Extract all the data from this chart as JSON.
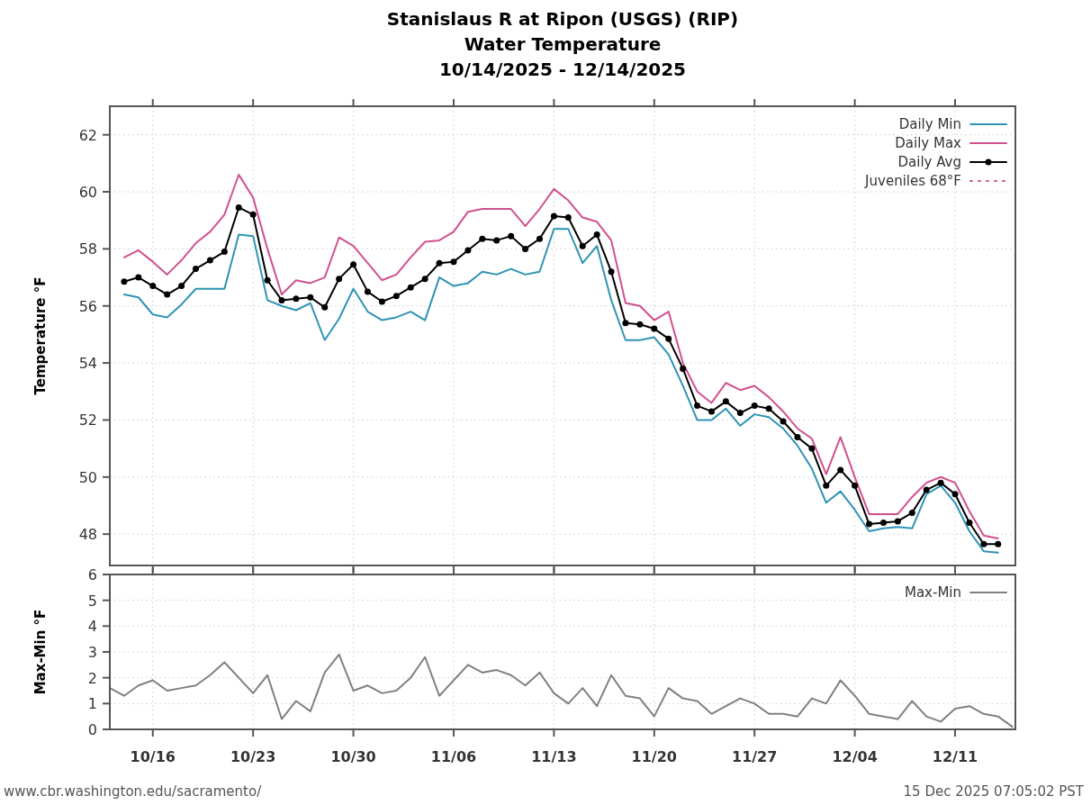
{
  "chart_data": [
    {
      "type": "line",
      "title": "Stanislaus R at Ripon (USGS) (RIP)",
      "subtitle": "Water Temperature\n10/14/2025 - 12/14/2025",
      "ylabel": "Temperature °F",
      "x": [
        "2025-10-14",
        "2025-10-15",
        "2025-10-16",
        "2025-10-17",
        "2025-10-18",
        "2025-10-19",
        "2025-10-20",
        "2025-10-21",
        "2025-10-22",
        "2025-10-23",
        "2025-10-24",
        "2025-10-25",
        "2025-10-26",
        "2025-10-27",
        "2025-10-28",
        "2025-10-29",
        "2025-10-30",
        "2025-10-31",
        "2025-11-01",
        "2025-11-02",
        "2025-11-03",
        "2025-11-04",
        "2025-11-05",
        "2025-11-06",
        "2025-11-07",
        "2025-11-08",
        "2025-11-09",
        "2025-11-10",
        "2025-11-11",
        "2025-11-12",
        "2025-11-13",
        "2025-11-14",
        "2025-11-15",
        "2025-11-16",
        "2025-11-17",
        "2025-11-18",
        "2025-11-19",
        "2025-11-20",
        "2025-11-21",
        "2025-11-22",
        "2025-11-23",
        "2025-11-24",
        "2025-11-25",
        "2025-11-26",
        "2025-11-27",
        "2025-11-28",
        "2025-11-29",
        "2025-11-30",
        "2025-12-01",
        "2025-12-02",
        "2025-12-03",
        "2025-12-04",
        "2025-12-05",
        "2025-12-06",
        "2025-12-07",
        "2025-12-08",
        "2025-12-09",
        "2025-12-10",
        "2025-12-11",
        "2025-12-12",
        "2025-12-13",
        "2025-12-14"
      ],
      "series": [
        {
          "name": "Daily Min",
          "color": "#2f93b5",
          "values": [
            56.4,
            56.3,
            55.7,
            55.6,
            56.05,
            56.6,
            56.6,
            56.6,
            58.5,
            58.45,
            56.2,
            56.0,
            55.85,
            56.1,
            54.8,
            55.55,
            56.6,
            55.8,
            55.5,
            55.6,
            55.8,
            55.5,
            57.0,
            56.7,
            56.8,
            57.2,
            57.1,
            57.3,
            57.1,
            57.2,
            58.7,
            58.7,
            57.5,
            58.1,
            56.2,
            54.8,
            54.8,
            54.9,
            54.3,
            53.2,
            52.0,
            52.0,
            52.4,
            51.8,
            52.2,
            52.1,
            51.7,
            51.1,
            50.3,
            49.1,
            49.5,
            48.85,
            48.1,
            48.2,
            48.25,
            48.2,
            49.4,
            49.7,
            49.1,
            48.1,
            47.4,
            47.35
          ]
        },
        {
          "name": "Daily Max",
          "color": "#d0508f",
          "values": [
            57.7,
            57.95,
            57.55,
            57.1,
            57.6,
            58.2,
            58.6,
            59.2,
            60.6,
            59.8,
            58.0,
            56.4,
            56.9,
            56.8,
            57.0,
            58.4,
            58.1,
            57.5,
            56.9,
            57.1,
            57.7,
            58.25,
            58.3,
            58.6,
            59.3,
            59.4,
            59.4,
            59.4,
            58.8,
            59.4,
            60.1,
            59.7,
            59.1,
            58.95,
            58.3,
            56.1,
            56.0,
            55.5,
            55.8,
            54.0,
            53.0,
            52.6,
            53.3,
            53.05,
            53.2,
            52.8,
            52.3,
            51.7,
            51.35,
            50.1,
            51.4,
            50.0,
            48.7,
            48.7,
            48.7,
            49.3,
            49.8,
            50.0,
            49.8,
            48.8,
            47.95,
            47.85
          ]
        },
        {
          "name": "Daily Avg",
          "color": "#000000",
          "marker": "circle",
          "values": [
            56.85,
            57.0,
            56.7,
            56.4,
            56.7,
            57.3,
            57.6,
            57.9,
            59.45,
            59.2,
            56.9,
            56.2,
            56.25,
            56.3,
            55.95,
            56.95,
            57.45,
            56.5,
            56.15,
            56.35,
            56.65,
            56.95,
            57.5,
            57.55,
            57.95,
            58.35,
            58.3,
            58.45,
            58.0,
            58.35,
            59.15,
            59.1,
            58.1,
            58.5,
            57.2,
            55.4,
            55.35,
            55.2,
            54.85,
            53.8,
            52.5,
            52.3,
            52.65,
            52.25,
            52.5,
            52.4,
            51.95,
            51.4,
            51.0,
            49.7,
            50.25,
            49.7,
            48.35,
            48.4,
            48.45,
            48.75,
            49.55,
            49.8,
            49.4,
            48.4,
            47.65,
            47.65
          ]
        },
        {
          "name": "Juveniles 68°F",
          "color": "#d0508f",
          "line_style": "dotted",
          "values": [
            null,
            null,
            null,
            null,
            null,
            null,
            null,
            null,
            null,
            null,
            null,
            null,
            null,
            null,
            null,
            null,
            null,
            null,
            null,
            null,
            null,
            null,
            null,
            null,
            null,
            null,
            null,
            null,
            null,
            null,
            null,
            null,
            null,
            null,
            null,
            null,
            null,
            null,
            null,
            null,
            null,
            null,
            null,
            null,
            null,
            null,
            null,
            null,
            null,
            null,
            null,
            null,
            null,
            null,
            null,
            null,
            null,
            null,
            null,
            null,
            null,
            null
          ]
        }
      ],
      "xlim": [
        "2025-10-13",
        "2025-12-15T05:00"
      ],
      "xticks": [
        {
          "value": "2025-10-16",
          "label": null
        },
        {
          "value": "2025-10-23",
          "label": null
        },
        {
          "value": "2025-10-30",
          "label": null
        },
        {
          "value": "2025-11-06",
          "label": null
        },
        {
          "value": "2025-11-13",
          "label": null
        },
        {
          "value": "2025-11-20",
          "label": null
        },
        {
          "value": "2025-11-27",
          "label": null
        },
        {
          "value": "2025-12-04",
          "label": null
        },
        {
          "value": "2025-12-11",
          "label": null
        }
      ],
      "ylim": [
        46.9,
        63
      ],
      "yticks": [
        48,
        50,
        52,
        54,
        56,
        58,
        60,
        62
      ],
      "grid": true,
      "legend": "top right",
      "tick_labels": "y"
    },
    {
      "type": "line",
      "ylabel": "Max-Min °F",
      "x": [
        "2025-10-13",
        "2025-10-14",
        "2025-10-15",
        "2025-10-16",
        "2025-10-17",
        "2025-10-18",
        "2025-10-19",
        "2025-10-20",
        "2025-10-21",
        "2025-10-22",
        "2025-10-23",
        "2025-10-24",
        "2025-10-25",
        "2025-10-26",
        "2025-10-27",
        "2025-10-28",
        "2025-10-29",
        "2025-10-30",
        "2025-10-31",
        "2025-11-01",
        "2025-11-02",
        "2025-11-03",
        "2025-11-04",
        "2025-11-05",
        "2025-11-06",
        "2025-11-07",
        "2025-11-08",
        "2025-11-09",
        "2025-11-10",
        "2025-11-11",
        "2025-11-12",
        "2025-11-13",
        "2025-11-14",
        "2025-11-15",
        "2025-11-16",
        "2025-11-17",
        "2025-11-18",
        "2025-11-19",
        "2025-11-20",
        "2025-11-21",
        "2025-11-22",
        "2025-11-23",
        "2025-11-24",
        "2025-11-25",
        "2025-11-26",
        "2025-11-27",
        "2025-11-28",
        "2025-11-29",
        "2025-11-30",
        "2025-12-01",
        "2025-12-02",
        "2025-12-03",
        "2025-12-04",
        "2025-12-05",
        "2025-12-06",
        "2025-12-07",
        "2025-12-08",
        "2025-12-09",
        "2025-12-10",
        "2025-12-11",
        "2025-12-12",
        "2025-12-13",
        "2025-12-14",
        "2025-12-15"
      ],
      "series": [
        {
          "name": "Max-Min",
          "color": "#808080",
          "values": [
            1.6,
            1.3,
            1.7,
            1.9,
            1.5,
            1.6,
            1.7,
            2.1,
            2.6,
            2.0,
            1.4,
            2.1,
            0.4,
            1.1,
            0.7,
            2.2,
            2.9,
            1.5,
            1.7,
            1.4,
            1.5,
            2.0,
            2.8,
            1.3,
            1.9,
            2.5,
            2.2,
            2.3,
            2.1,
            1.7,
            2.2,
            1.4,
            1.0,
            1.6,
            0.9,
            2.1,
            1.3,
            1.2,
            0.5,
            1.6,
            1.2,
            1.1,
            0.6,
            0.9,
            1.2,
            1.0,
            0.6,
            0.6,
            0.5,
            1.2,
            1.0,
            1.9,
            1.3,
            0.6,
            0.5,
            0.4,
            1.1,
            0.5,
            0.3,
            0.8,
            0.9,
            0.6,
            0.5,
            0.1
          ]
        }
      ],
      "xlim": [
        "2025-10-13",
        "2025-12-15T05:00"
      ],
      "xticks": [
        {
          "value": "2025-10-16",
          "label": "10/16"
        },
        {
          "value": "2025-10-23",
          "label": "10/23"
        },
        {
          "value": "2025-10-30",
          "label": "10/30"
        },
        {
          "value": "2025-11-06",
          "label": "11/06"
        },
        {
          "value": "2025-11-13",
          "label": "11/13"
        },
        {
          "value": "2025-11-20",
          "label": "11/20"
        },
        {
          "value": "2025-11-27",
          "label": "11/27"
        },
        {
          "value": "2025-12-04",
          "label": "12/04"
        },
        {
          "value": "2025-12-11",
          "label": "12/11"
        }
      ],
      "ylim": [
        0,
        6
      ],
      "yticks": [
        0,
        1,
        2,
        3,
        4,
        5,
        6
      ],
      "grid": true,
      "legend": "top right",
      "annotations": [
        "www.cbr.washington.edu/sacramento/",
        "15 Dec 2025 07:05:02 PST"
      ]
    }
  ]
}
